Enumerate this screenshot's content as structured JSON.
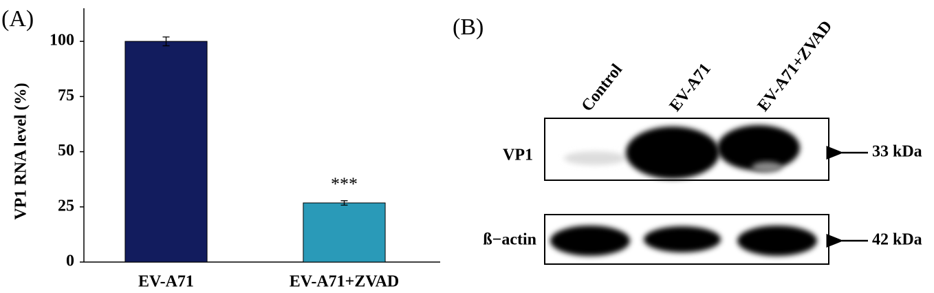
{
  "chart_data": {
    "type": "bar",
    "panel_label": "(A)",
    "ylabel": "VP1 RNA level (%)",
    "categories": [
      "EV-A71",
      "EV-A71+ZVAD"
    ],
    "values": [
      100,
      26.8
    ],
    "errors": [
      2,
      1
    ],
    "colors": [
      "#121c5e",
      "#2a9ab8"
    ],
    "annotation": "***",
    "ylim": [
      0,
      115
    ],
    "yticks": [
      0,
      25,
      50,
      75,
      100
    ]
  },
  "blot": {
    "panel_label": "(B)",
    "lanes": [
      "Control",
      "EV-A71",
      "EV-A71+ZVAD"
    ],
    "rows": [
      {
        "label": "VP1",
        "size": "33 kDa"
      },
      {
        "label": "ß−actin",
        "size": "42 kDa"
      }
    ]
  }
}
